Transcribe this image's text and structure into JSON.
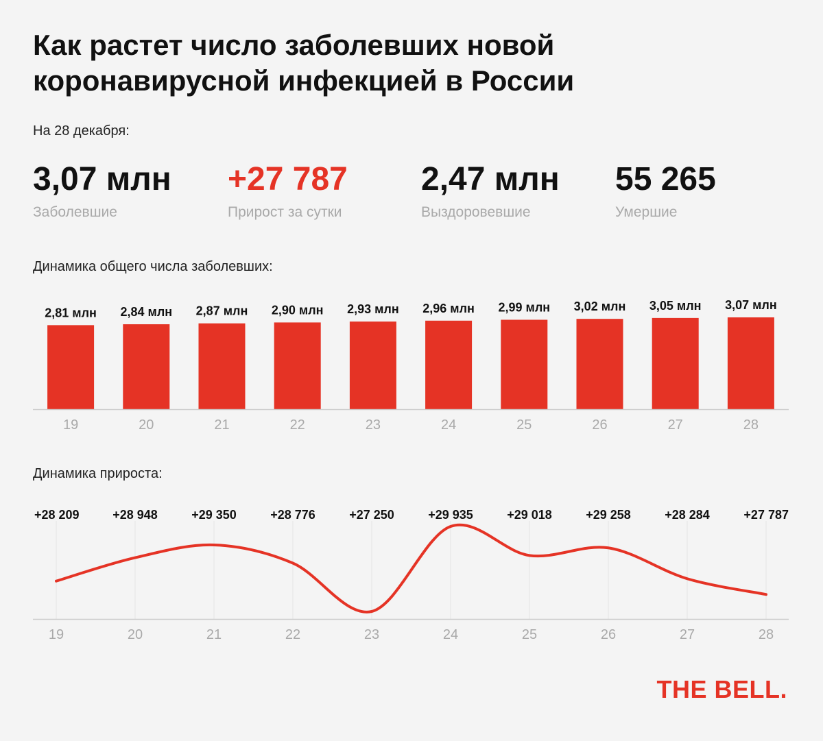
{
  "title_line1": "Как растет число заболевших новой",
  "title_line2": "коронавирусной инфекцией в России",
  "date_label": "На 28 декабря:",
  "stats": [
    {
      "value": "3,07 млн",
      "label": "Заболевшие"
    },
    {
      "value": "+27 787",
      "label": "Прирост за сутки"
    },
    {
      "value": "2,47 млн",
      "label": "Выздоровевшие"
    },
    {
      "value": "55 265",
      "label": "Умершие"
    }
  ],
  "colors": {
    "accent": "#e53325",
    "muted": "#a9a9a9",
    "axis": "#cccccc"
  },
  "logo": "THE BELL.",
  "chart_data": [
    {
      "type": "bar",
      "title": "Динамика общего числа заболевших:",
      "categories": [
        "19",
        "20",
        "21",
        "22",
        "23",
        "24",
        "25",
        "26",
        "27",
        "28"
      ],
      "values": [
        2.81,
        2.84,
        2.87,
        2.9,
        2.93,
        2.96,
        2.99,
        3.02,
        3.05,
        3.07
      ],
      "labels": [
        "2,81 млн",
        "2,84 млн",
        "2,87 млн",
        "2,90 млн",
        "2,93 млн",
        "2,96 млн",
        "2,99 млн",
        "3,02 млн",
        "3,05 млн",
        "3,07 млн"
      ],
      "unit": "млн",
      "ylim": [
        0,
        3.07
      ],
      "grid": false
    },
    {
      "type": "line",
      "title": "Динамика прироста:",
      "categories": [
        "19",
        "20",
        "21",
        "22",
        "23",
        "24",
        "25",
        "26",
        "27",
        "28"
      ],
      "values": [
        28209,
        28948,
        29350,
        28776,
        27250,
        29935,
        29018,
        29258,
        28284,
        27787
      ],
      "labels": [
        "+28 209",
        "+28 948",
        "+29 350",
        "+28 776",
        "+27 250",
        "+29 935",
        "+29 018",
        "+29 258",
        "+28 284",
        "+27 787"
      ],
      "grid": true
    }
  ]
}
